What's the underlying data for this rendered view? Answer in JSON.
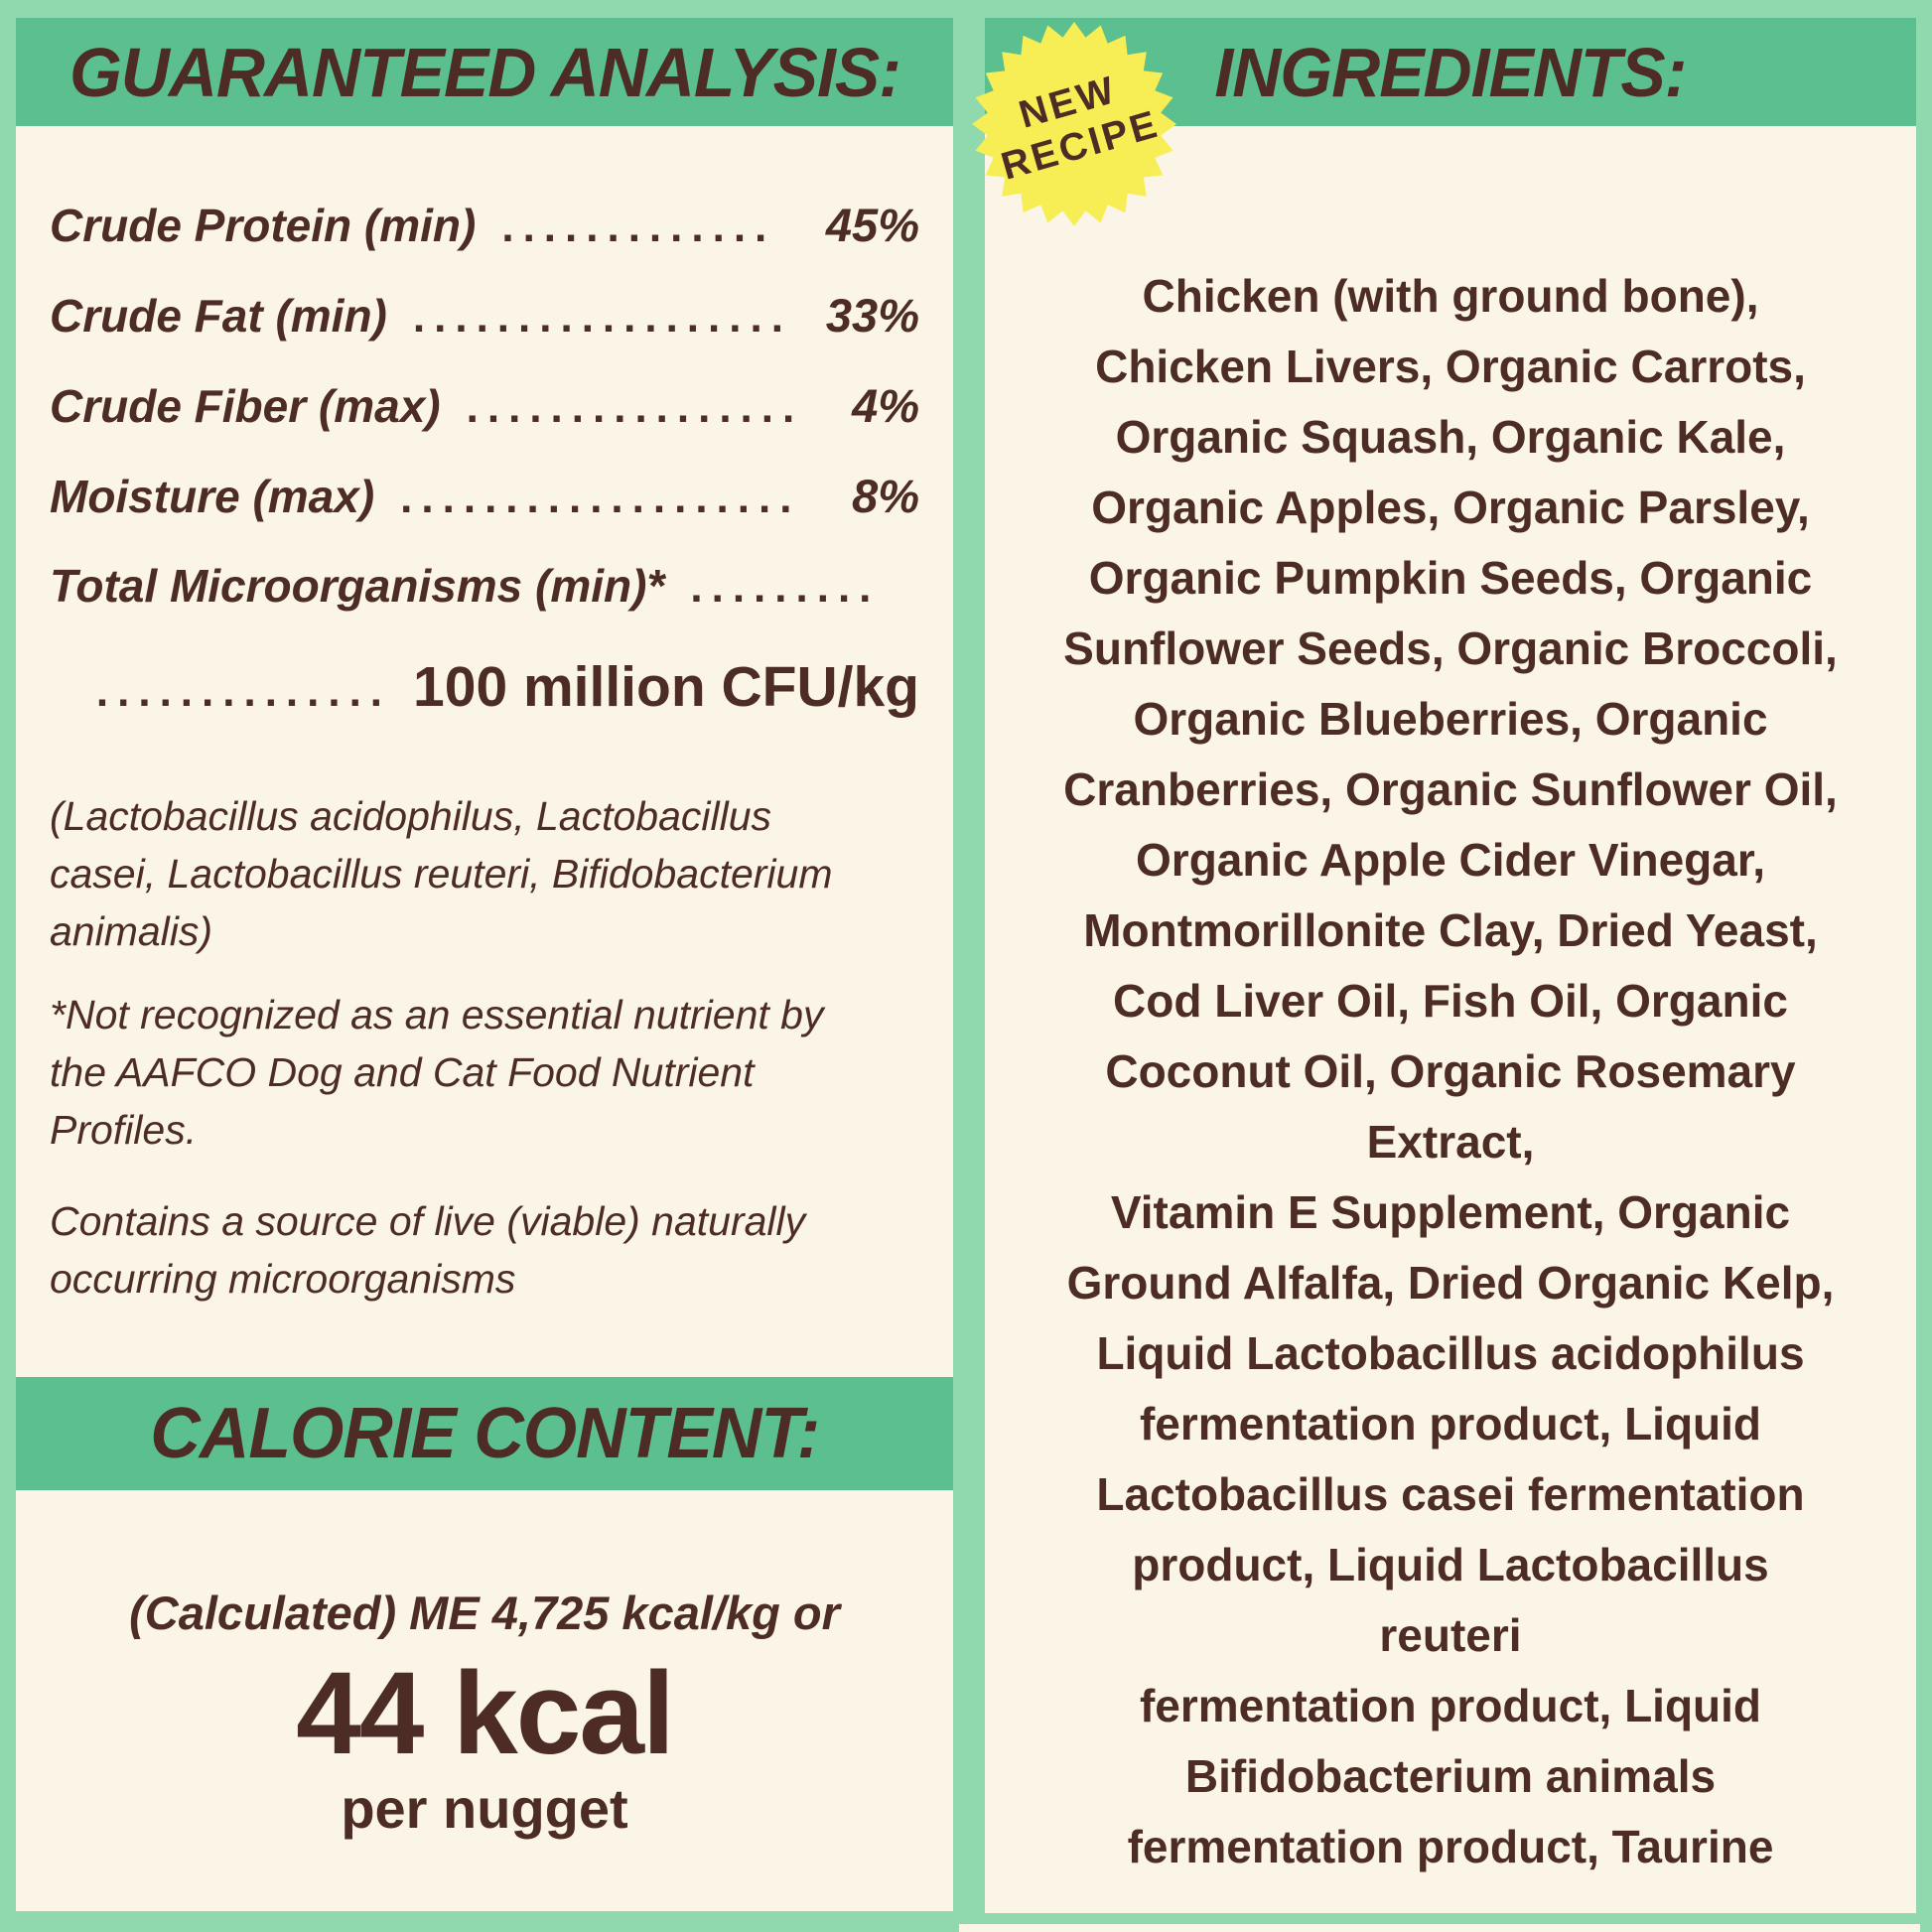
{
  "colors": {
    "background": "#90d8ae",
    "band_green": "#5cbf8f",
    "panel_cream": "#faf5e6",
    "text_brown": "#4c2c24",
    "badge_yellow": "#f6ee54"
  },
  "guaranteed_analysis": {
    "title": "GUARANTEED ANALYSIS:",
    "rows": [
      {
        "label": "Crude Protein (min)",
        "dots": ".............",
        "value": "45%"
      },
      {
        "label": "Crude Fat (min)",
        "dots": "..................",
        "value": "33%"
      },
      {
        "label": "Crude Fiber (max)",
        "dots": "................",
        "value": "4%"
      },
      {
        "label": "Moisture (max)",
        "dots": "...................",
        "value": "8%"
      },
      {
        "label": "Total Microorganisms (min)*",
        "dots": ".........",
        "value": ""
      }
    ],
    "cfu": {
      "dots": "..............",
      "value": "100 million CFU/kg"
    },
    "species_lines": [
      "(Lactobacillus acidophilus, Lactobacillus",
      "casei, Lactobacillus reuteri, Bifidobacterium",
      "animalis)"
    ],
    "footnote_lines": [
      "*Not recognized as an essential nutrient by",
      "the AAFCO Dog and Cat Food Nutrient",
      "Profiles."
    ],
    "contains_lines": [
      "Contains a source of live (viable) naturally",
      "occurring microorganisms"
    ]
  },
  "calorie_content": {
    "title": "CALORIE CONTENT:",
    "calculated_line": "(Calculated) ME 4,725 kcal/kg or",
    "kcal": "44 kcal",
    "per_unit": "per nugget"
  },
  "ingredients": {
    "title": "INGREDIENTS:",
    "badge": {
      "line1": "NEW",
      "line2": "RECIPE"
    },
    "lines": [
      "Chicken (with ground bone),",
      "Chicken Livers, Organic Carrots,",
      "Organic Squash, Organic Kale,",
      "Organic Apples, Organic Parsley,",
      "Organic Pumpkin Seeds, Organic",
      "Sunflower Seeds, Organic Broccoli,",
      "Organic Blueberries, Organic",
      "Cranberries, Organic Sunflower Oil,",
      "Organic Apple Cider Vinegar,",
      "Montmorillonite Clay, Dried Yeast,",
      "Cod Liver Oil, Fish Oil, Organic",
      "Coconut Oil, Organic Rosemary",
      "Extract,",
      "Vitamin E Supplement, Organic",
      "Ground Alfalfa, Dried Organic Kelp,",
      "Liquid Lactobacillus acidophilus",
      "fermentation product, Liquid",
      "Lactobacillus casei fermentation",
      "product, Liquid Lactobacillus",
      "reuteri",
      "fermentation product, Liquid",
      "Bifidobacterium animals",
      "fermentation product, Taurine"
    ]
  }
}
